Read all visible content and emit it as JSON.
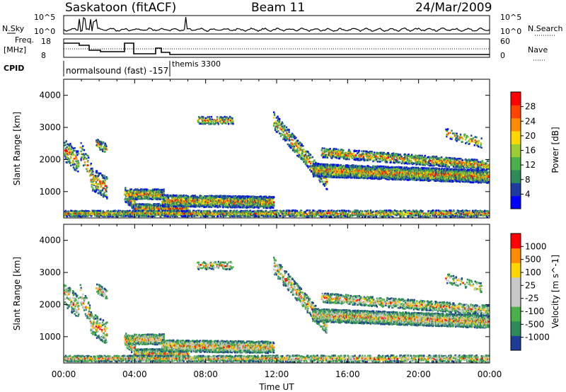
{
  "header": {
    "station": "Saskatoon (fitACF)",
    "beam": "Beam 11",
    "date": "24/Mar/2009"
  },
  "status_panels": {
    "nsky_label": "N.Sky",
    "nsky_ticks": [
      "10^5",
      "10^0"
    ],
    "nsearch_label": "N.Search",
    "nsearch_ticks": [
      "10^5",
      "10^0"
    ],
    "freq_label_line1": "Freq.",
    "freq_label_line2": "[MHz]",
    "freq_ticks": [
      "18",
      "8"
    ],
    "nave_label": "Nave",
    "nave_ticks": [
      "60",
      "0"
    ],
    "cpid_label": "CPID",
    "cpid_modes": [
      "normalsound (fast) -157",
      "themis 3300"
    ]
  },
  "chart_data": [
    {
      "type": "heatmap",
      "name": "power-panel",
      "ylabel": "Slant Range [km]",
      "yticks": [
        "4000",
        "3000",
        "2000",
        "1000"
      ],
      "ylim": [
        180,
        4500
      ],
      "colorbar_label": "Power [dB]",
      "colorbar_ticks": [
        "28",
        "24",
        "20",
        "16",
        "12",
        "8",
        "4"
      ],
      "colors": [
        "#0000ff",
        "#1e3ca0",
        "#2e8b57",
        "#49b04a",
        "#9acd32",
        "#ffd700",
        "#ff8c00",
        "#ff4500",
        "#ff0000"
      ]
    },
    {
      "type": "heatmap",
      "name": "velocity-panel",
      "ylabel": "Slant Range [km]",
      "yticks": [
        "4000",
        "3000",
        "2000",
        "1000"
      ],
      "ylim": [
        180,
        4500
      ],
      "colorbar_label": "Velocity [m s^-1]",
      "colorbar_ticks": [
        "1000",
        "500",
        "100",
        "25",
        "-25",
        "-100",
        "-500",
        "-1000"
      ],
      "colors": [
        "#1e3c96",
        "#2e8b57",
        "#49b04a",
        "#c8c8c8",
        "#c8c8c8",
        "#ffd700",
        "#ff8c00",
        "#ff0000"
      ]
    }
  ],
  "xaxis": {
    "label": "Time UT",
    "ticks": [
      "00:00",
      "04:00",
      "08:00",
      "12:00",
      "16:00",
      "20:00",
      "00:00"
    ]
  }
}
